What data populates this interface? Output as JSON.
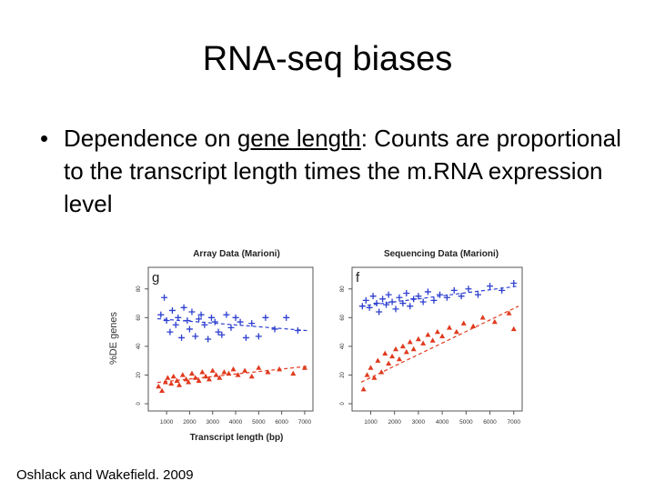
{
  "slide": {
    "title": "RNA-seq biases",
    "bullet_symbol": "•",
    "bullet_prefix": "Dependence on ",
    "bullet_underlined": "gene length",
    "bullet_suffix": ": Counts are proportional to the transcript length times the m.RNA expression level",
    "citation": "Oshlack and Wakefield. 2009"
  },
  "figure": {
    "shared_ylabel": "%DE genes",
    "shared_xlabel": "Transcript length (bp)",
    "colors": {
      "blue": "#2d3fd0",
      "red": "#e03a1e"
    }
  },
  "chart_data": [
    {
      "type": "scatter",
      "title": "Array Data (Marioni)",
      "panel_letter": "g",
      "xlabel": "Transcript length (bp)",
      "ylabel": "%DE genes",
      "xlim": [
        600,
        7200
      ],
      "ylim": [
        0,
        90
      ],
      "xticks": [
        1000,
        2000,
        3000,
        4000,
        5000,
        6000,
        7000
      ],
      "yticks": [
        0,
        20,
        40,
        60,
        80
      ],
      "grid": false,
      "series": [
        {
          "marker": "plus",
          "color": "#2d3fd0",
          "x": [
            750,
            900,
            1000,
            1150,
            1250,
            1400,
            1500,
            1650,
            1750,
            1900,
            2000,
            2100,
            2250,
            2400,
            2500,
            2650,
            2800,
            2950,
            3100,
            3250,
            3400,
            3600,
            3800,
            4000,
            4200,
            4450,
            4700,
            5000,
            5300,
            5700,
            6200,
            6700
          ],
          "y": [
            62,
            74,
            58,
            50,
            65,
            55,
            60,
            46,
            67,
            58,
            52,
            64,
            47,
            59,
            62,
            55,
            45,
            60,
            57,
            50,
            48,
            62,
            53,
            60,
            57,
            46,
            56,
            47,
            60,
            52,
            60,
            51
          ]
        },
        {
          "marker": "triangle",
          "color": "#e03a1e",
          "x": [
            650,
            800,
            950,
            1050,
            1200,
            1300,
            1450,
            1550,
            1700,
            1850,
            1950,
            2100,
            2250,
            2400,
            2550,
            2700,
            2850,
            3000,
            3150,
            3300,
            3500,
            3700,
            3900,
            4100,
            4400,
            4700,
            5000,
            5400,
            5900,
            6500,
            7000
          ],
          "y": [
            12,
            9,
            15,
            18,
            14,
            19,
            16,
            13,
            20,
            17,
            15,
            21,
            18,
            16,
            22,
            19,
            17,
            23,
            20,
            18,
            22,
            21,
            24,
            20,
            23,
            19,
            25,
            22,
            24,
            21,
            25
          ]
        }
      ]
    },
    {
      "type": "scatter",
      "title": "Sequencing Data (Marioni)",
      "panel_letter": "f",
      "xlabel": "Transcript length (bp)",
      "ylabel": "",
      "xlim": [
        600,
        7200
      ],
      "ylim": [
        0,
        90
      ],
      "xticks": [
        1000,
        2000,
        3000,
        4000,
        5000,
        6000,
        7000
      ],
      "yticks": [
        0,
        20,
        40,
        60,
        80
      ],
      "grid": false,
      "series": [
        {
          "marker": "plus",
          "color": "#2d3fd0",
          "x": [
            650,
            800,
            950,
            1100,
            1250,
            1350,
            1500,
            1650,
            1750,
            1900,
            2050,
            2200,
            2350,
            2500,
            2650,
            2800,
            3000,
            3200,
            3400,
            3650,
            3900,
            4200,
            4500,
            4800,
            5100,
            5500,
            6000,
            6500,
            7000
          ],
          "y": [
            68,
            72,
            67,
            75,
            70,
            64,
            73,
            69,
            76,
            71,
            66,
            74,
            70,
            77,
            68,
            73,
            75,
            71,
            78,
            72,
            76,
            74,
            79,
            75,
            80,
            76,
            82,
            79,
            84
          ],
          "trend": [
            68,
            82
          ]
        },
        {
          "marker": "triangle",
          "color": "#e03a1e",
          "x": [
            700,
            850,
            1000,
            1150,
            1300,
            1450,
            1600,
            1750,
            1900,
            2050,
            2200,
            2350,
            2500,
            2650,
            2800,
            3000,
            3200,
            3400,
            3600,
            3800,
            4000,
            4300,
            4600,
            4900,
            5300,
            5700,
            6200,
            6800,
            7000
          ],
          "y": [
            10,
            20,
            25,
            18,
            30,
            22,
            35,
            28,
            33,
            38,
            31,
            40,
            36,
            43,
            38,
            45,
            42,
            48,
            44,
            50,
            47,
            53,
            50,
            56,
            54,
            60,
            57,
            63,
            52
          ],
          "trend": [
            15,
            68
          ]
        }
      ]
    }
  ]
}
